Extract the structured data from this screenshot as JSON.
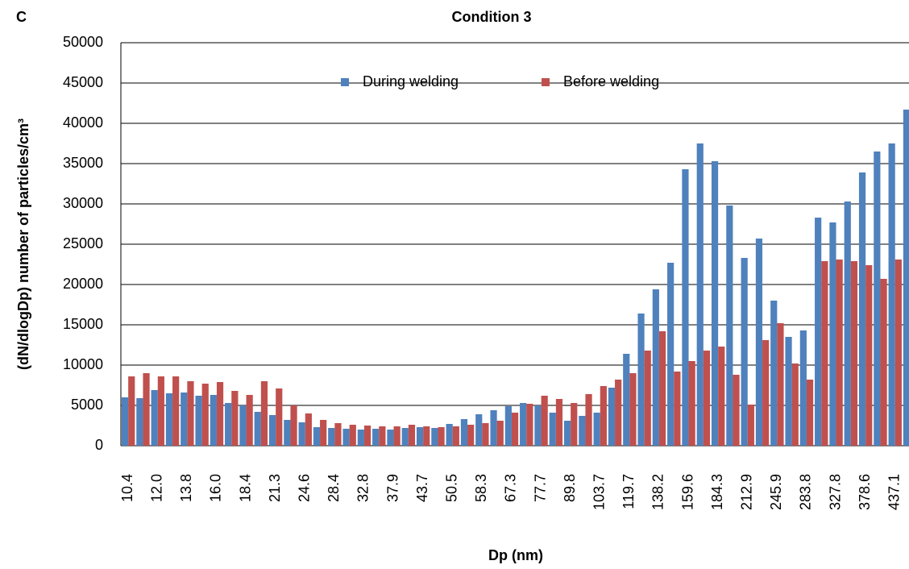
{
  "panel_label": "C",
  "chart_data": {
    "type": "bar",
    "title": "Condition 3",
    "x_label": "Dp (nm)",
    "y_label": "(dN/dlogDp) number of particles/cm³",
    "categories": [
      "10.4",
      null,
      "12.0",
      null,
      "13.8",
      null,
      "16.0",
      null,
      "18.4",
      null,
      "21.3",
      null,
      "24.6",
      null,
      "28.4",
      null,
      "32.8",
      null,
      "37.9",
      null,
      "43.7",
      null,
      "50.5",
      null,
      "58.3",
      null,
      "67.3",
      null,
      "77.7",
      null,
      "89.8",
      null,
      "103.7",
      null,
      "119.7",
      null,
      "138.2",
      null,
      "159.6",
      null,
      "184.3",
      null,
      "212.9",
      null,
      "245.9",
      null,
      "283.8",
      null,
      "327.8",
      null,
      "378.6",
      null,
      "437.1",
      null
    ],
    "series": [
      {
        "name": "During welding",
        "color": "#4f81bd",
        "values": [
          6000,
          5900,
          6900,
          6500,
          6600,
          6200,
          6300,
          5300,
          5000,
          4200,
          3800,
          3200,
          2900,
          2300,
          2200,
          2100,
          2000,
          2100,
          2000,
          2200,
          2300,
          2200,
          2700,
          3300,
          3900,
          4400,
          4900,
          5300,
          5000,
          4100,
          3100,
          3700,
          4100,
          7200,
          11400,
          16400,
          19400,
          22700,
          34300,
          37500,
          35300,
          29800,
          23300,
          25700,
          18000,
          13500,
          14300,
          28300,
          27700,
          30300,
          33900,
          36500,
          37500,
          41700
        ]
      },
      {
        "name": "Before welding",
        "color": "#c0504d",
        "values": [
          8600,
          9000,
          8600,
          8600,
          8000,
          7700,
          7900,
          6800,
          6300,
          8000,
          7100,
          5000,
          4000,
          3200,
          2800,
          2600,
          2500,
          2400,
          2400,
          2600,
          2400,
          2300,
          2400,
          2600,
          2800,
          3100,
          4100,
          5200,
          6200,
          5800,
          5300,
          6400,
          7400,
          8200,
          9000,
          11800,
          14200,
          9200,
          10500,
          11800,
          12300,
          8800,
          5100,
          13100,
          15200,
          10200,
          8200,
          22900,
          23100,
          22900,
          22400,
          20700,
          23100,
          null
        ]
      }
    ],
    "ylim": [
      0,
      50000
    ],
    "yticks": [
      0,
      5000,
      10000,
      15000,
      20000,
      25000,
      30000,
      35000,
      40000,
      45000,
      50000
    ],
    "grid": true,
    "legend": "top"
  }
}
